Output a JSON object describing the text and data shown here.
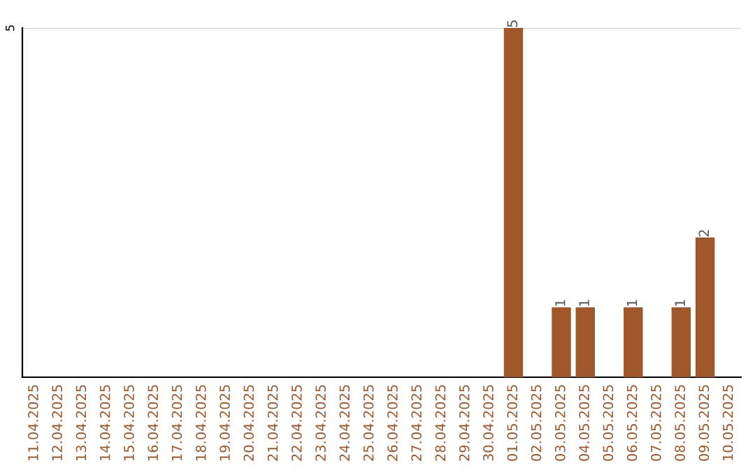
{
  "chart_data": {
    "type": "bar",
    "categories": [
      "11.04.2025",
      "12.04.2025",
      "13.04.2025",
      "14.04.2025",
      "15.04.2025",
      "16.04.2025",
      "17.04.2025",
      "18.04.2025",
      "19.04.2025",
      "20.04.2025",
      "21.04.2025",
      "22.04.2025",
      "23.04.2025",
      "24.04.2025",
      "25.04.2025",
      "26.04.2025",
      "27.04.2025",
      "28.04.2025",
      "29.04.2025",
      "30.04.2025",
      "01.05.2025",
      "02.05.2025",
      "03.05.2025",
      "04.05.2025",
      "05.05.2025",
      "06.05.2025",
      "07.05.2025",
      "08.05.2025",
      "09.05.2025",
      "10.05.2025"
    ],
    "values": [
      null,
      null,
      null,
      null,
      null,
      null,
      null,
      null,
      null,
      null,
      null,
      null,
      null,
      null,
      null,
      null,
      null,
      null,
      null,
      null,
      5,
      null,
      1,
      1,
      null,
      1,
      null,
      1,
      2,
      null
    ],
    "data_labels": true,
    "ref_lines": [
      {
        "axis": "y",
        "value": 5,
        "label": "5",
        "color": "#cccccc"
      }
    ],
    "color": "#a0572a"
  }
}
